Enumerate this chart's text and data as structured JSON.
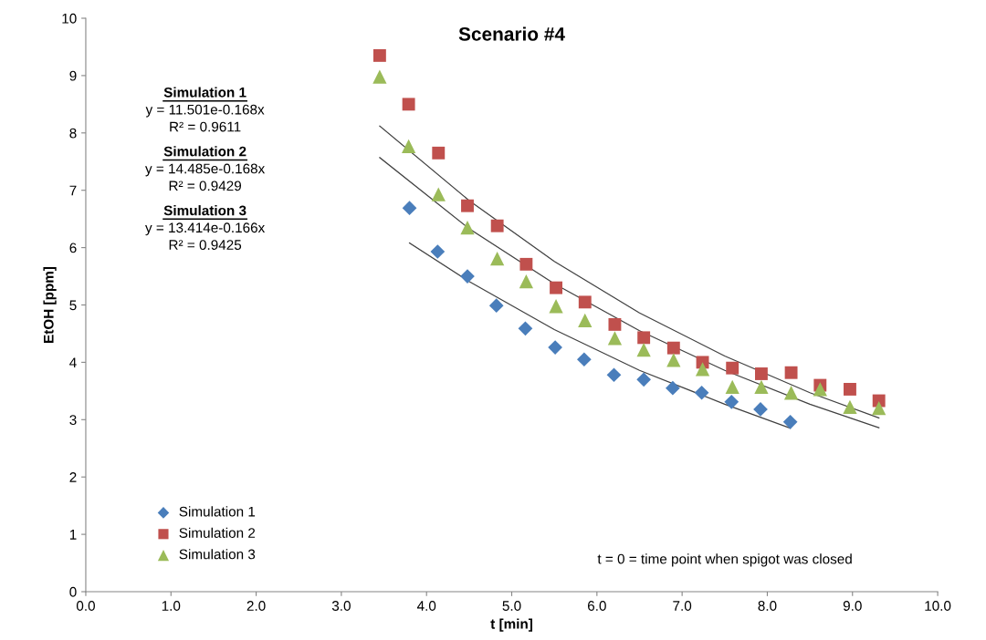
{
  "chart_data": {
    "type": "scatter",
    "title": "Scenario #4",
    "xlabel": "t [min]",
    "ylabel": "EtOH [ppm]",
    "xlim": [
      0,
      10
    ],
    "ylim": [
      0,
      10
    ],
    "xticks": [
      {
        "value": 0,
        "label": "0.0"
      },
      {
        "value": 1,
        "label": "1.0"
      },
      {
        "value": 2,
        "label": "2.0"
      },
      {
        "value": 3,
        "label": "3.0"
      },
      {
        "value": 4,
        "label": "4.0"
      },
      {
        "value": 5,
        "label": "5.0"
      },
      {
        "value": 6,
        "label": "6.0"
      },
      {
        "value": 7,
        "label": "7.0"
      },
      {
        "value": 8,
        "label": "8.0"
      },
      {
        "value": 9,
        "label": "9.0"
      },
      {
        "value": 10,
        "label": "10.0"
      }
    ],
    "yticks": [
      0,
      1,
      2,
      3,
      4,
      5,
      6,
      7,
      8,
      9,
      10
    ],
    "grid": false,
    "legend": "bottom left",
    "series": [
      {
        "name": "Simulation 1",
        "color": "#4a7ebb",
        "marker": "diamond",
        "x": [
          3.8,
          4.13,
          4.48,
          4.82,
          5.16,
          5.51,
          5.85,
          6.2,
          6.55,
          6.89,
          7.23,
          7.58,
          7.92,
          8.27
        ],
        "values": [
          6.69,
          5.93,
          5.5,
          4.99,
          4.59,
          4.26,
          4.05,
          3.78,
          3.7,
          3.55,
          3.47,
          3.31,
          3.18,
          2.96
        ]
      },
      {
        "name": "Simulation 2",
        "color": "#c0504d",
        "marker": "square",
        "x": [
          3.45,
          3.79,
          4.14,
          4.48,
          4.83,
          5.17,
          5.52,
          5.86,
          6.21,
          6.55,
          6.9,
          7.24,
          7.59,
          7.93,
          8.28,
          8.62,
          8.97,
          9.31
        ],
        "values": [
          9.35,
          8.5,
          7.65,
          6.73,
          6.38,
          5.71,
          5.3,
          5.05,
          4.66,
          4.43,
          4.25,
          4.0,
          3.9,
          3.8,
          3.82,
          3.6,
          3.53,
          3.33
        ]
      },
      {
        "name": "Simulation 3",
        "color": "#9bbb59",
        "marker": "triangle",
        "x": [
          3.45,
          3.79,
          4.14,
          4.48,
          4.83,
          5.17,
          5.52,
          5.86,
          6.21,
          6.55,
          6.9,
          7.24,
          7.59,
          7.93,
          8.28,
          8.62,
          8.97,
          9.31
        ],
        "values": [
          8.98,
          7.77,
          6.93,
          6.35,
          5.81,
          5.41,
          4.98,
          4.73,
          4.42,
          4.22,
          4.04,
          3.88,
          3.57,
          3.57,
          3.47,
          3.53,
          3.22,
          3.2
        ]
      },
      {
        "type": "line",
        "color": "#404040",
        "x": [
          3.8,
          4.5,
          5.5,
          6.5,
          7.5,
          8.27
        ],
        "values": [
          6.08,
          5.41,
          4.57,
          3.86,
          3.27,
          2.85
        ]
      },
      {
        "type": "line",
        "color": "#404040",
        "x": [
          3.45,
          4.5,
          5.5,
          6.5,
          7.5,
          8.5,
          9.31
        ],
        "values": [
          8.12,
          6.82,
          5.76,
          4.86,
          4.11,
          3.47,
          3.03
        ]
      },
      {
        "type": "line",
        "color": "#404040",
        "x": [
          3.45,
          4.5,
          5.5,
          6.5,
          7.5,
          8.5,
          9.31
        ],
        "values": [
          7.57,
          6.33,
          5.37,
          4.55,
          3.86,
          3.27,
          2.86
        ]
      }
    ],
    "annotations": [
      "Simulation 1",
      "y = 11.501e-0.168x",
      "R² = 0.9611",
      "Simulation 2",
      "y = 14.485e-0.168x",
      "R² = 0.9429",
      "Simulation 3",
      "y = 13.414e-0.166x",
      "R² = 0.9425",
      "t = 0 = time point when spigot was closed"
    ]
  }
}
